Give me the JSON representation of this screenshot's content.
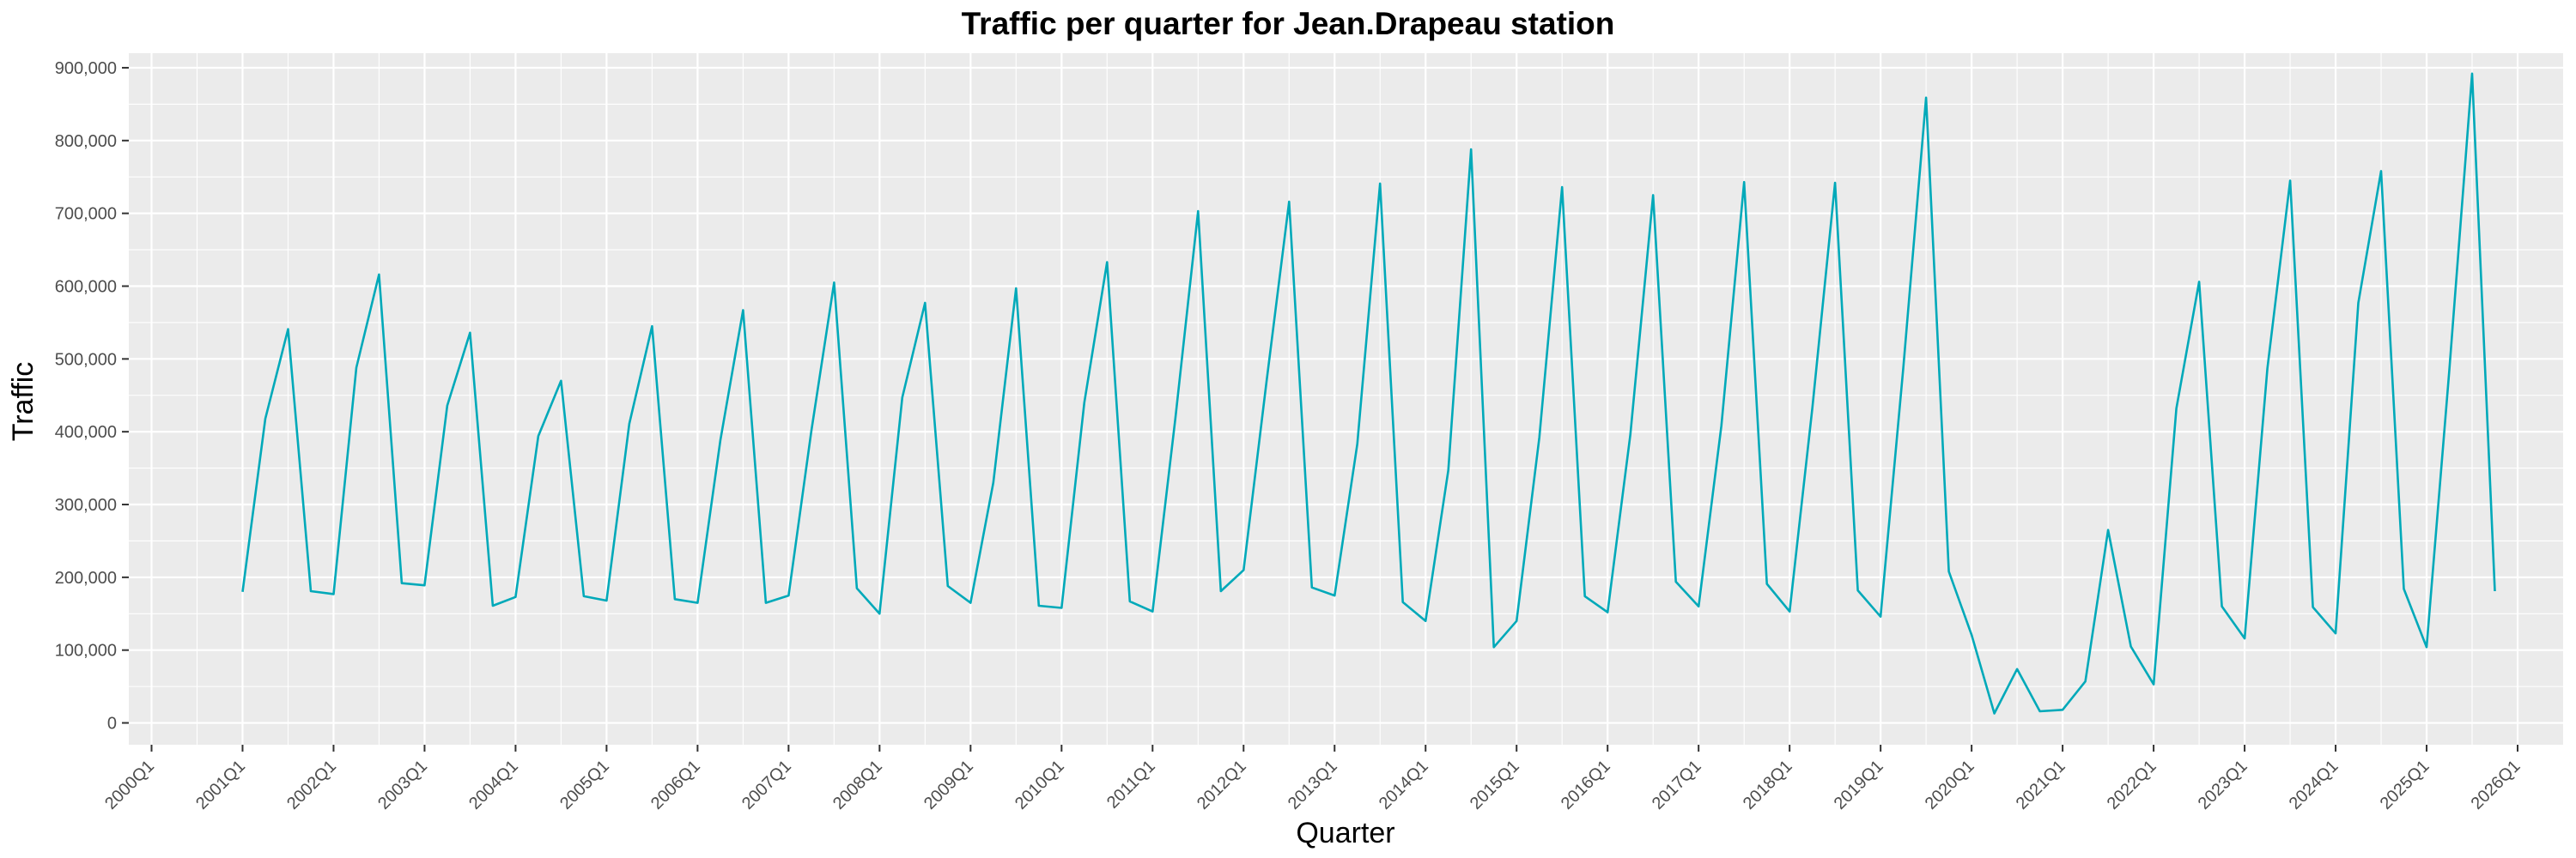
{
  "chart_data": {
    "type": "line",
    "title": "Traffic per quarter for Jean.Drapeau station",
    "xlabel": "Quarter",
    "ylabel": "Traffic",
    "ylim": [
      -30000,
      920000
    ],
    "y_ticks": [
      0,
      100000,
      200000,
      300000,
      400000,
      500000,
      600000,
      700000,
      800000,
      900000
    ],
    "y_tick_labels": [
      "0",
      "100,000",
      "200,000",
      "300,000",
      "400,000",
      "500,000",
      "600,000",
      "700,000",
      "800,000",
      "900,000"
    ],
    "x_ticks": [
      "2000Q1",
      "2001Q1",
      "2002Q1",
      "2003Q1",
      "2004Q1",
      "2005Q1",
      "2006Q1",
      "2007Q1",
      "2008Q1",
      "2009Q1",
      "2010Q1",
      "2011Q1",
      "2012Q1",
      "2013Q1",
      "2014Q1",
      "2015Q1",
      "2016Q1",
      "2017Q1",
      "2018Q1",
      "2019Q1",
      "2020Q1",
      "2021Q1",
      "2022Q1",
      "2023Q1",
      "2024Q1",
      "2025Q1",
      "2026Q1"
    ],
    "x_range": [
      "1999Q4",
      "2026Q3"
    ],
    "grid": true,
    "line_color": "#00A9B9",
    "panel_background": "#EBEBEB",
    "grid_color": "#FFFFFF",
    "series": [
      {
        "x": [
          "2001Q1",
          "2001Q2",
          "2001Q3",
          "2001Q4",
          "2002Q1",
          "2002Q2",
          "2002Q3",
          "2002Q4",
          "2003Q1",
          "2003Q2",
          "2003Q3",
          "2003Q4",
          "2004Q1",
          "2004Q2",
          "2004Q3",
          "2004Q4",
          "2005Q1",
          "2005Q2",
          "2005Q3",
          "2005Q4",
          "2006Q1",
          "2006Q2",
          "2006Q3",
          "2006Q4",
          "2007Q1",
          "2007Q2",
          "2007Q3",
          "2007Q4",
          "2008Q1",
          "2008Q2",
          "2008Q3",
          "2008Q4",
          "2009Q1",
          "2009Q2",
          "2009Q3",
          "2009Q4",
          "2010Q1",
          "2010Q2",
          "2010Q3",
          "2010Q4",
          "2011Q1",
          "2011Q2",
          "2011Q3",
          "2011Q4",
          "2012Q1",
          "2012Q2",
          "2012Q3",
          "2012Q4",
          "2013Q1",
          "2013Q2",
          "2013Q3",
          "2013Q4",
          "2014Q1",
          "2014Q2",
          "2014Q3",
          "2014Q4",
          "2015Q1",
          "2015Q2",
          "2015Q3",
          "2015Q4",
          "2016Q1",
          "2016Q2",
          "2016Q3",
          "2016Q4",
          "2017Q1",
          "2017Q2",
          "2017Q3",
          "2017Q4",
          "2018Q1",
          "2018Q2",
          "2018Q3",
          "2018Q4",
          "2019Q1",
          "2019Q2",
          "2019Q3",
          "2019Q4",
          "2020Q1",
          "2020Q2",
          "2020Q3",
          "2020Q4",
          "2021Q1",
          "2021Q2",
          "2021Q3",
          "2021Q4",
          "2022Q1",
          "2022Q2",
          "2022Q3",
          "2022Q4",
          "2023Q1",
          "2023Q2",
          "2023Q3",
          "2023Q4",
          "2024Q1",
          "2024Q2",
          "2024Q3",
          "2024Q4",
          "2025Q1",
          "2025Q2",
          "2025Q3",
          "2025Q4"
        ],
        "values": [
          180000,
          418000,
          541000,
          181000,
          177000,
          488000,
          616000,
          192000,
          189000,
          436000,
          536000,
          161000,
          173000,
          394000,
          470000,
          174000,
          168000,
          411000,
          545000,
          170000,
          165000,
          388000,
          567000,
          165000,
          175000,
          401000,
          605000,
          185000,
          150000,
          447000,
          577000,
          188000,
          165000,
          330000,
          597000,
          161000,
          158000,
          440000,
          633000,
          167000,
          153000,
          418000,
          703000,
          181000,
          210000,
          467000,
          716000,
          186000,
          175000,
          383000,
          741000,
          166000,
          140000,
          347000,
          788000,
          104000,
          140000,
          392000,
          736000,
          174000,
          152000,
          396000,
          725000,
          194000,
          160000,
          408000,
          743000,
          191000,
          153000,
          433000,
          742000,
          182000,
          146000,
          488000,
          859000,
          208000,
          121000,
          13000,
          74000,
          16000,
          18000,
          57000,
          265000,
          105000,
          53000,
          432000,
          606000,
          160000,
          116000,
          487000,
          745000,
          159000,
          123000,
          577000,
          758000,
          184000,
          104000,
          485000,
          892000,
          181000
        ]
      }
    ]
  }
}
